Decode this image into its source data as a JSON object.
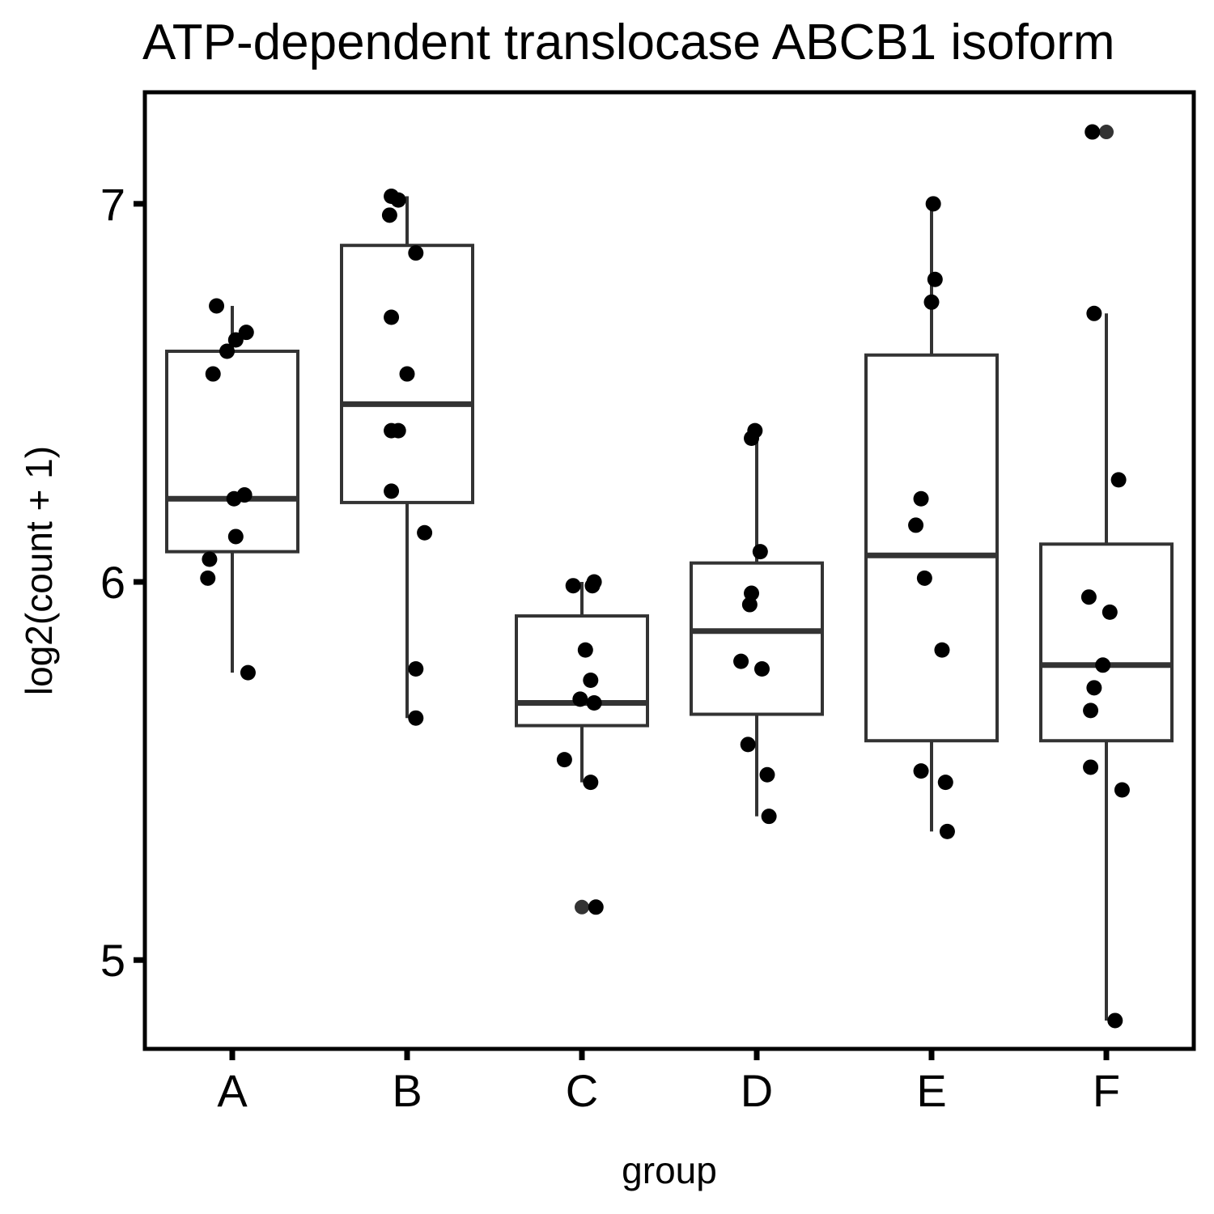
{
  "chart_data": {
    "type": "box",
    "title": "ATP-dependent translocase ABCB1 isoform",
    "xlabel": "group",
    "ylabel": "log2(count + 1)",
    "ylim": [
      4.765,
      7.295
    ],
    "yticks": [
      5,
      6,
      7
    ],
    "grid": false,
    "categories": [
      "A",
      "B",
      "C",
      "D",
      "E",
      "F"
    ],
    "boxes": [
      {
        "group": "A",
        "lower_whisker": 5.76,
        "q1": 6.08,
        "median": 6.22,
        "q3": 6.61,
        "upper_whisker": 6.73,
        "outliers": []
      },
      {
        "group": "B",
        "lower_whisker": 5.64,
        "q1": 6.21,
        "median": 6.47,
        "q3": 6.89,
        "upper_whisker": 7.02,
        "outliers": []
      },
      {
        "group": "C",
        "lower_whisker": 5.47,
        "q1": 5.62,
        "median": 5.68,
        "q3": 5.91,
        "upper_whisker": 6.0,
        "outliers": [
          5.14
        ]
      },
      {
        "group": "D",
        "lower_whisker": 5.38,
        "q1": 5.65,
        "median": 5.87,
        "q3": 6.05,
        "upper_whisker": 6.4,
        "outliers": []
      },
      {
        "group": "E",
        "lower_whisker": 5.34,
        "q1": 5.58,
        "median": 6.07,
        "q3": 6.6,
        "upper_whisker": 7.0,
        "outliers": []
      },
      {
        "group": "F",
        "lower_whisker": 4.84,
        "q1": 5.58,
        "median": 5.78,
        "q3": 6.1,
        "upper_whisker": 6.71,
        "outliers": [
          7.19
        ]
      }
    ],
    "points": [
      {
        "group": "A",
        "values": [
          6.73,
          6.66,
          6.64,
          6.61,
          6.55,
          6.23,
          6.22,
          6.12,
          6.06,
          6.01,
          5.76
        ],
        "offsets": [
          -0.09,
          0.08,
          0.02,
          -0.03,
          -0.11,
          0.07,
          0.01,
          0.02,
          -0.13,
          -0.14,
          0.09
        ]
      },
      {
        "group": "B",
        "values": [
          7.02,
          7.01,
          6.97,
          6.87,
          6.7,
          6.55,
          6.4,
          6.4,
          6.24,
          6.13,
          5.77,
          5.64
        ],
        "offsets": [
          -0.09,
          -0.05,
          -0.1,
          0.05,
          -0.09,
          0.0,
          -0.09,
          -0.05,
          -0.09,
          0.1,
          0.05,
          0.05
        ]
      },
      {
        "group": "C",
        "values": [
          6.0,
          5.99,
          5.99,
          5.82,
          5.74,
          5.69,
          5.68,
          5.53,
          5.47,
          5.14
        ],
        "offsets": [
          0.07,
          0.06,
          -0.05,
          0.02,
          0.05,
          -0.01,
          0.07,
          -0.1,
          0.05,
          0.08
        ]
      },
      {
        "group": "D",
        "values": [
          6.4,
          6.38,
          6.08,
          5.97,
          5.94,
          5.79,
          5.77,
          5.57,
          5.49,
          5.38
        ],
        "offsets": [
          -0.01,
          -0.03,
          0.02,
          -0.03,
          -0.04,
          -0.09,
          0.03,
          -0.05,
          0.06,
          0.07
        ]
      },
      {
        "group": "E",
        "values": [
          7.0,
          6.8,
          6.74,
          6.22,
          6.15,
          6.01,
          5.82,
          5.5,
          5.47,
          5.34
        ],
        "offsets": [
          0.01,
          0.02,
          0.0,
          -0.06,
          -0.09,
          -0.04,
          0.06,
          -0.06,
          0.08,
          0.09
        ]
      },
      {
        "group": "F",
        "values": [
          7.19,
          6.71,
          6.27,
          5.96,
          5.92,
          5.78,
          5.72,
          5.66,
          5.51,
          5.45,
          4.84
        ],
        "offsets": [
          -0.08,
          -0.07,
          0.07,
          -0.1,
          0.02,
          -0.02,
          -0.07,
          -0.09,
          -0.09,
          0.09,
          0.05
        ]
      }
    ],
    "colors": {
      "box": "#333333",
      "point": "#000000",
      "frame": "#000000"
    }
  }
}
